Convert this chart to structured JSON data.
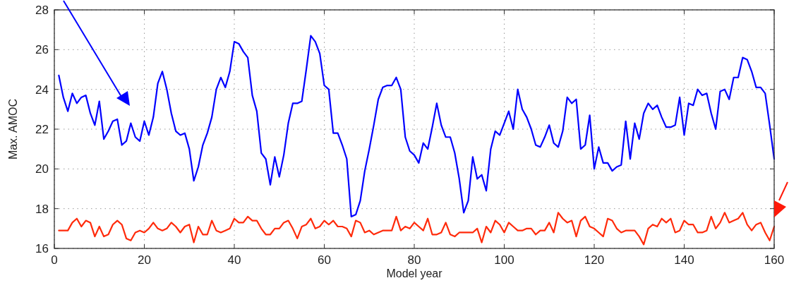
{
  "chart_data": {
    "type": "line",
    "xlabel": "Model year",
    "ylabel": "Max. AMOC",
    "x": [
      1,
      2,
      3,
      4,
      5,
      6,
      7,
      8,
      9,
      10,
      11,
      12,
      13,
      14,
      15,
      16,
      17,
      18,
      19,
      20,
      21,
      22,
      23,
      24,
      25,
      26,
      27,
      28,
      29,
      30,
      31,
      32,
      33,
      34,
      35,
      36,
      37,
      38,
      39,
      40,
      41,
      42,
      43,
      44,
      45,
      46,
      47,
      48,
      49,
      50,
      51,
      52,
      53,
      54,
      55,
      56,
      57,
      58,
      59,
      60,
      61,
      62,
      63,
      64,
      65,
      66,
      67,
      68,
      69,
      70,
      71,
      72,
      73,
      74,
      75,
      76,
      77,
      78,
      79,
      80,
      81,
      82,
      83,
      84,
      85,
      86,
      87,
      88,
      89,
      90,
      91,
      92,
      93,
      94,
      95,
      96,
      97,
      98,
      99,
      100,
      101,
      102,
      103,
      104,
      105,
      106,
      107,
      108,
      109,
      110,
      111,
      112,
      113,
      114,
      115,
      116,
      117,
      118,
      119,
      120,
      121,
      122,
      123,
      124,
      125,
      126,
      127,
      128,
      129,
      130,
      131,
      132,
      133,
      134,
      135,
      136,
      137,
      138,
      139,
      140,
      141,
      142,
      143,
      144,
      145,
      146,
      147,
      148,
      149,
      150,
      151,
      152,
      153,
      154,
      155,
      156,
      157,
      158,
      159,
      160
    ],
    "series": [
      {
        "color": "#0000ff",
        "values": [
          24.7,
          23.6,
          22.9,
          23.8,
          23.3,
          23.6,
          23.7,
          22.8,
          22.2,
          23.4,
          21.5,
          21.9,
          22.4,
          22.5,
          21.2,
          21.4,
          22.3,
          21.6,
          21.4,
          22.4,
          21.7,
          22.6,
          24.3,
          24.9,
          24.0,
          22.8,
          21.9,
          21.7,
          21.8,
          21.0,
          19.4,
          20.1,
          21.2,
          21.8,
          22.6,
          24.0,
          24.6,
          24.1,
          24.9,
          26.4,
          26.3,
          25.9,
          25.6,
          23.7,
          22.9,
          20.8,
          20.5,
          19.2,
          20.6,
          19.6,
          20.7,
          22.3,
          23.3,
          23.3,
          23.4,
          25.0,
          26.7,
          26.4,
          25.8,
          24.2,
          24.0,
          21.8,
          21.8,
          21.2,
          20.5,
          17.6,
          17.7,
          18.4,
          19.9,
          21.0,
          22.2,
          23.5,
          24.1,
          24.2,
          24.2,
          24.6,
          24.0,
          21.6,
          20.9,
          20.7,
          20.3,
          21.3,
          21.0,
          22.1,
          23.3,
          22.2,
          21.6,
          21.6,
          20.8,
          19.5,
          17.8,
          18.4,
          20.6,
          19.5,
          19.7,
          18.9,
          21.0,
          21.9,
          21.7,
          22.3,
          22.9,
          22.0,
          24.0,
          23.0,
          22.6,
          22.0,
          21.2,
          21.1,
          21.6,
          22.2,
          21.3,
          21.1,
          21.9,
          23.6,
          23.3,
          23.5,
          21.0,
          21.2,
          22.7,
          20.0,
          21.1,
          20.3,
          20.3,
          19.9,
          20.1,
          20.2,
          22.4,
          20.5,
          22.3,
          21.5,
          22.8,
          23.3,
          23.0,
          23.2,
          22.6,
          22.1,
          22.1,
          22.2,
          23.6,
          21.7,
          23.3,
          23.2,
          24.0,
          23.7,
          23.8,
          22.8,
          22.0,
          23.9,
          24.0,
          23.5,
          24.6,
          24.6,
          25.6,
          25.5,
          24.9,
          24.1,
          24.1,
          23.8,
          22.2,
          20.5
        ]
      },
      {
        "color": "#ff2a0a",
        "values": [
          16.9,
          16.9,
          16.9,
          17.3,
          17.5,
          17.1,
          17.4,
          17.3,
          16.6,
          17.1,
          16.6,
          16.7,
          17.2,
          17.4,
          17.2,
          16.5,
          16.4,
          16.8,
          16.9,
          16.8,
          17.0,
          17.3,
          17.0,
          16.9,
          17.0,
          17.3,
          17.1,
          16.8,
          17.1,
          17.2,
          16.3,
          17.1,
          16.7,
          16.7,
          17.4,
          16.9,
          16.8,
          16.9,
          17.0,
          17.5,
          17.3,
          17.3,
          17.6,
          17.4,
          17.4,
          17.0,
          16.7,
          16.7,
          17.0,
          17.0,
          17.3,
          17.4,
          17.0,
          16.5,
          17.1,
          17.2,
          17.5,
          17.0,
          17.1,
          17.4,
          17.2,
          17.4,
          17.1,
          17.1,
          17.0,
          16.6,
          17.4,
          17.3,
          16.8,
          16.9,
          16.7,
          16.8,
          16.9,
          16.9,
          16.9,
          17.6,
          16.9,
          17.1,
          17.0,
          17.3,
          17.1,
          16.9,
          17.5,
          16.7,
          16.7,
          16.8,
          17.3,
          16.7,
          16.6,
          16.8,
          16.8,
          16.8,
          16.8,
          17.0,
          16.3,
          17.1,
          16.8,
          17.4,
          17.2,
          16.8,
          17.3,
          17.1,
          16.9,
          16.9,
          17.0,
          17.0,
          16.7,
          16.9,
          16.9,
          17.3,
          16.8,
          17.8,
          17.5,
          17.3,
          17.4,
          16.6,
          17.4,
          17.6,
          17.1,
          17.0,
          16.8,
          16.6,
          17.5,
          17.4,
          17.0,
          16.8,
          16.9,
          16.9,
          16.9,
          16.6,
          16.2,
          17.0,
          17.2,
          17.1,
          17.5,
          17.3,
          17.5,
          16.8,
          16.9,
          17.4,
          17.2,
          17.2,
          16.8,
          16.8,
          16.9,
          17.6,
          17.0,
          17.3,
          17.8,
          17.3,
          17.4,
          17.5,
          17.8,
          17.2,
          16.9,
          17.2,
          17.3,
          16.8,
          16.4,
          17.1
        ]
      }
    ],
    "xlim": [
      0,
      160
    ],
    "xticks": [
      0,
      20,
      40,
      60,
      80,
      100,
      120,
      140,
      160
    ],
    "ylim": [
      16,
      28
    ],
    "yticks": [
      16,
      18,
      20,
      22,
      24,
      26,
      28
    ],
    "grid": true,
    "marker": "none",
    "line_style": "solid"
  }
}
